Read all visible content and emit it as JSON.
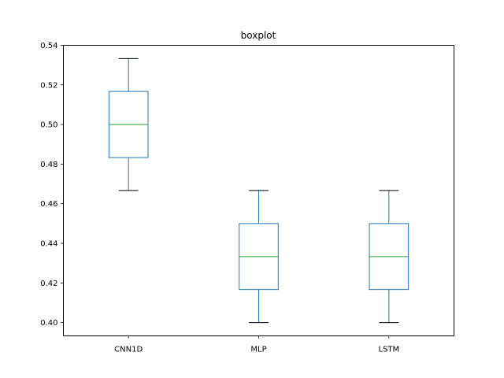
{
  "chart_data": {
    "type": "boxplot",
    "title": "boxplot",
    "xlabel": "",
    "ylabel": "",
    "ylim": [
      0.3933,
      0.54
    ],
    "yticks": [
      0.4,
      0.42,
      0.44,
      0.46,
      0.48,
      0.5,
      0.52,
      0.54
    ],
    "ytick_labels": [
      "0.40",
      "0.42",
      "0.44",
      "0.46",
      "0.48",
      "0.50",
      "0.52",
      "0.54"
    ],
    "categories": [
      "CNN1D",
      "MLP",
      "LSTM"
    ],
    "boxes": [
      {
        "name": "CNN1D",
        "whisker_low": 0.4667,
        "q1": 0.4833,
        "median": 0.5,
        "q3": 0.5167,
        "whisker_high": 0.5333
      },
      {
        "name": "MLP",
        "whisker_low": 0.4,
        "q1": 0.4167,
        "median": 0.4333,
        "q3": 0.45,
        "whisker_high": 0.4667
      },
      {
        "name": "LSTM",
        "whisker_low": 0.4,
        "q1": 0.4167,
        "median": 0.4333,
        "q3": 0.45,
        "whisker_high": 0.4667
      }
    ],
    "grid": false,
    "legend": "none",
    "colors": {
      "box": "#1f77b4",
      "median": "#2ca02c",
      "cap": "#000000"
    }
  }
}
